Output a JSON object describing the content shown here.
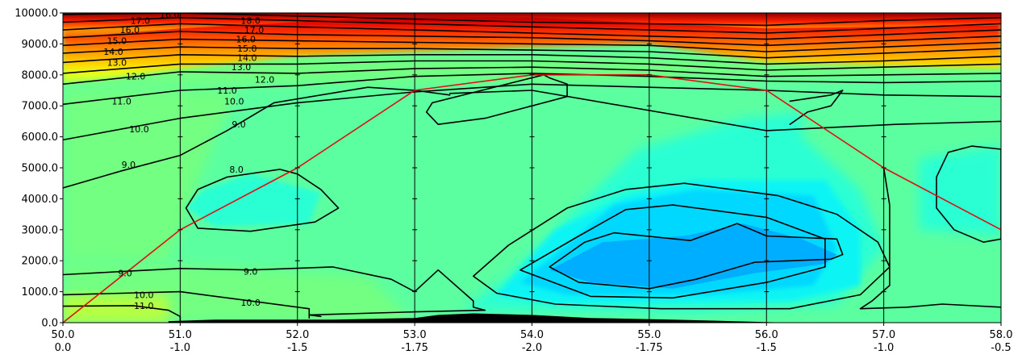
{
  "chart_data": {
    "type": "heatmap",
    "title": "",
    "xlabel": "",
    "ylabel": "",
    "xlim": [
      0,
      8
    ],
    "ylim": [
      0,
      10000
    ],
    "y_ticks": [
      0,
      1000,
      2000,
      3000,
      4000,
      5000,
      6000,
      7000,
      8000,
      9000,
      10000
    ],
    "y_tick_labels": [
      "0.0",
      "1000.0",
      "2000.0",
      "3000.0",
      "4000.0",
      "5000.0",
      "6000.0",
      "7000.0",
      "8000.0",
      "9000.0",
      "10000.0"
    ],
    "x_ticks": [
      0,
      1,
      2,
      3,
      4,
      5,
      6,
      7,
      8
    ],
    "x_tick_labels_line1": [
      "50.0",
      "51.0",
      "52.0",
      "53.0",
      "54.0",
      "55.0",
      "56.0",
      "57.0",
      "58.0"
    ],
    "x_tick_labels_line2": [
      "0.0",
      "-1.0",
      "-1.5",
      "-1.75",
      "-2.0",
      "-1.75",
      "-1.5",
      "-1.0",
      "-0.5"
    ],
    "red_line": {
      "color": "#dd1111",
      "x": [
        0,
        1,
        2,
        3,
        4,
        5,
        6,
        7,
        8
      ],
      "y": [
        0,
        3000,
        5000,
        7500,
        8000,
        8000,
        7500,
        5000,
        3000
      ]
    },
    "colors": {
      "lime": "#72ff82",
      "green": "#5cffa0",
      "aqua": "#2cffd4",
      "cyan": "#0af4f4",
      "sky": "#00d8ff",
      "blue": "#00aeff",
      "yellow": "#e8ff20",
      "orange": "#ff9900",
      "red": "#ff2a00",
      "darkred": "#990000",
      "terrain": "#000000"
    },
    "contour_labels": [
      {
        "text": "17.0",
        "x": 0.66,
        "y": 9750
      },
      {
        "text": "16.0",
        "x": 0.57,
        "y": 9450
      },
      {
        "text": "15.0",
        "x": 0.46,
        "y": 9100
      },
      {
        "text": "14.0",
        "x": 0.43,
        "y": 8750
      },
      {
        "text": "13.0",
        "x": 0.46,
        "y": 8400
      },
      {
        "text": "12.0",
        "x": 0.62,
        "y": 7950
      },
      {
        "text": "11.0",
        "x": 0.5,
        "y": 7150
      },
      {
        "text": "10.0",
        "x": 0.65,
        "y": 6250
      },
      {
        "text": "9.0",
        "x": 0.56,
        "y": 5100
      },
      {
        "text": "9.0",
        "x": 0.53,
        "y": 1600
      },
      {
        "text": "10.0",
        "x": 0.69,
        "y": 900
      },
      {
        "text": "11.0",
        "x": 0.69,
        "y": 550
      },
      {
        "text": "16.0",
        "x": 0.91,
        "y": 9950
      },
      {
        "text": "18.0",
        "x": 1.6,
        "y": 9750
      },
      {
        "text": "17.0",
        "x": 1.63,
        "y": 9450
      },
      {
        "text": "16.0",
        "x": 1.56,
        "y": 9150
      },
      {
        "text": "15.0",
        "x": 1.57,
        "y": 8850
      },
      {
        "text": "14.0",
        "x": 1.57,
        "y": 8550
      },
      {
        "text": "13.0",
        "x": 1.52,
        "y": 8250
      },
      {
        "text": "12.0",
        "x": 1.72,
        "y": 7850
      },
      {
        "text": "11.0",
        "x": 1.4,
        "y": 7500
      },
      {
        "text": "10.0",
        "x": 1.46,
        "y": 7150
      },
      {
        "text": "9.0",
        "x": 1.5,
        "y": 6400
      },
      {
        "text": "8.0",
        "x": 1.48,
        "y": 4950
      },
      {
        "text": "9.0",
        "x": 1.6,
        "y": 1650
      },
      {
        "text": "10.0",
        "x": 1.6,
        "y": 650
      }
    ]
  }
}
